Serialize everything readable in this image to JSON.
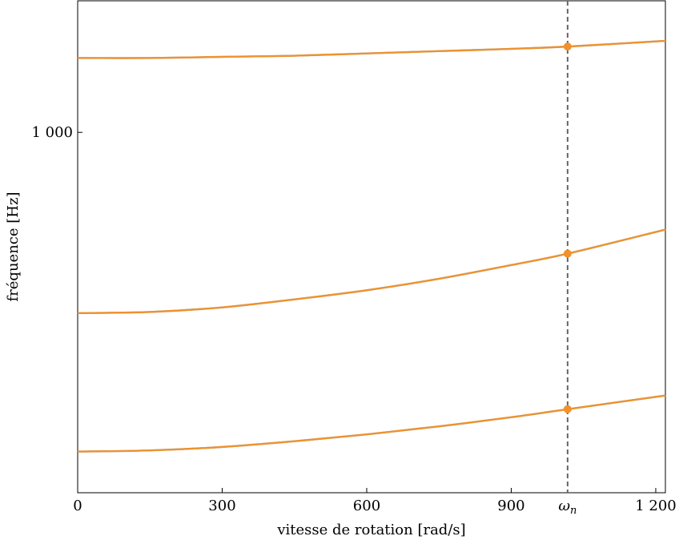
{
  "chart_data": {
    "type": "line",
    "title": "",
    "xlabel": "vitesse de rotation [rad/s]",
    "ylabel": "fréquence [Hz]",
    "xlim": [
      0,
      1220
    ],
    "ylim": [
      685,
      1115
    ],
    "grid": false,
    "legend": "none",
    "x_ticks": [
      {
        "value": 0,
        "label": "0"
      },
      {
        "value": 300,
        "label": "300"
      },
      {
        "value": 600,
        "label": "600"
      },
      {
        "value": 900,
        "label": "900"
      },
      {
        "value": 1200,
        "label": "1 200"
      }
    ],
    "y_ticks": [
      {
        "value": 1000,
        "label": "1 000"
      }
    ],
    "annotations": [
      {
        "type": "vline",
        "x": 1017,
        "label": "ωn",
        "style": "dashed",
        "color": "#666666"
      }
    ],
    "series": [
      {
        "color": "#f0922b",
        "x": [
          0,
          150,
          300,
          450,
          600,
          750,
          900,
          1017,
          1220
        ],
        "y": [
          721,
          722,
          725,
          730,
          736,
          743,
          751,
          758,
          770
        ]
      },
      {
        "color": "#f0922b",
        "x": [
          0,
          150,
          300,
          450,
          600,
          750,
          900,
          1017,
          1220
        ],
        "y": [
          842,
          843,
          847,
          854,
          862,
          872,
          884,
          894,
          915
        ]
      },
      {
        "color": "#f0922b",
        "x": [
          0,
          150,
          300,
          450,
          600,
          750,
          900,
          1017,
          1220
        ],
        "y": [
          1065,
          1065,
          1066,
          1067,
          1069,
          1071,
          1073,
          1075,
          1080
        ]
      }
    ],
    "markers": [
      {
        "x": 1017,
        "y": 758
      },
      {
        "x": 1017,
        "y": 894
      },
      {
        "x": 1017,
        "y": 1075
      }
    ]
  }
}
